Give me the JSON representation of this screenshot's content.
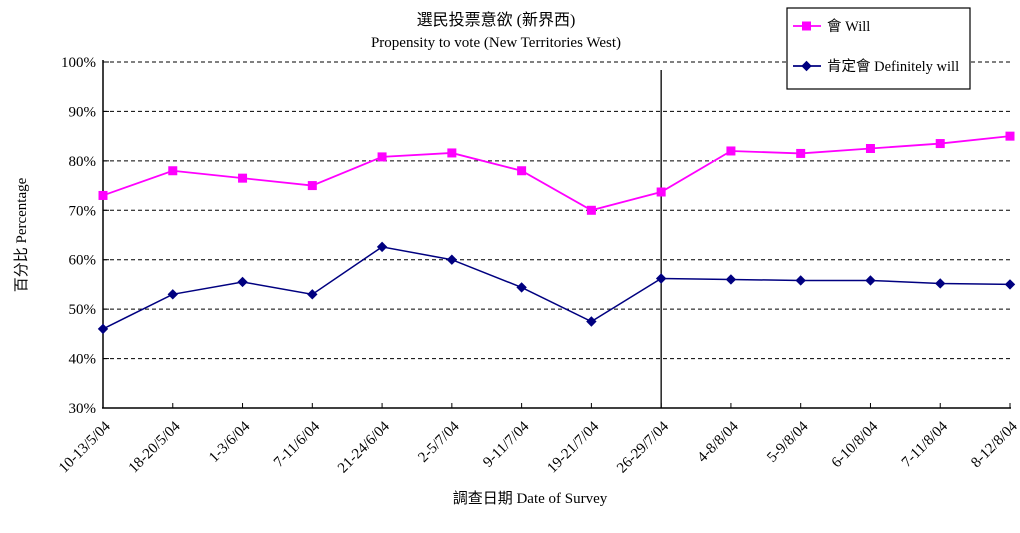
{
  "chart_data": {
    "type": "line",
    "title": "選民投票意欲 (新界西)",
    "subtitle": "Propensity to vote (New Territories West)",
    "xlabel": "調查日期 Date of Survey",
    "ylabel": "百分比 Percentage",
    "ylim": [
      30,
      100
    ],
    "ytick_step": 10,
    "ytick_suffix": "%",
    "grid": "horizontal-dashed",
    "legend_position": "top-right",
    "categories": [
      "10-13/5/04",
      "18-20/5/04",
      "1-3/6/04",
      "7-11/6/04",
      "21-24/6/04",
      "2-5/7/04",
      "9-11/7/04",
      "19-21/7/04",
      "26-29/7/04",
      "4-8/8/04",
      "5-9/8/04",
      "6-10/8/04",
      "7-11/8/04",
      "8-12/8/04"
    ],
    "series": [
      {
        "name": "會 Will",
        "color": "#FF00FF",
        "marker": "square",
        "values": [
          73,
          78,
          76.5,
          75,
          80.8,
          81.6,
          78,
          70,
          73.7,
          82,
          81.5,
          82.5,
          83.5,
          85
        ]
      },
      {
        "name": "肯定會 Definitely will",
        "color": "#000080",
        "marker": "diamond",
        "values": [
          46,
          53,
          55.5,
          53,
          62.6,
          60,
          54.4,
          47.5,
          56.2,
          56,
          55.8,
          55.8,
          55.2,
          55
        ]
      }
    ],
    "annotations": [
      {
        "type": "vline",
        "at_category": "26-29/7/04",
        "at_index": 8,
        "color": "#000000"
      }
    ]
  }
}
